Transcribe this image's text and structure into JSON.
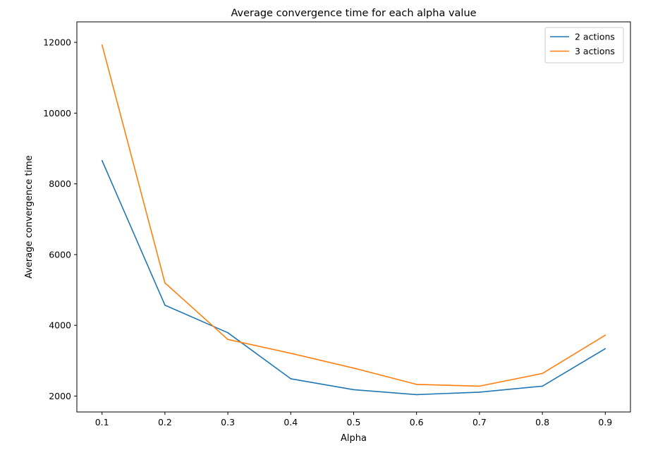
{
  "chart_data": {
    "type": "line",
    "title": "Average convergence time for each alpha value",
    "xlabel": "Alpha",
    "ylabel": "Average convergence time",
    "x": [
      0.1,
      0.2,
      0.3,
      0.4,
      0.5,
      0.6,
      0.7,
      0.8,
      0.9
    ],
    "xticks": [
      "0.1",
      "0.2",
      "0.3",
      "0.4",
      "0.5",
      "0.6",
      "0.7",
      "0.8",
      "0.9"
    ],
    "yticks": [
      2000,
      4000,
      6000,
      8000,
      10000,
      12000
    ],
    "xlim": [
      0.06,
      0.94
    ],
    "ylim": [
      1550,
      12580
    ],
    "grid": false,
    "legend_position": "top-right",
    "series": [
      {
        "name": "2 actions",
        "color": "#1f77b4",
        "values": [
          8660,
          4570,
          3790,
          2490,
          2180,
          2040,
          2110,
          2280,
          3340
        ]
      },
      {
        "name": "3 actions",
        "color": "#ff7f0e",
        "values": [
          11930,
          5200,
          3600,
          3210,
          2790,
          2330,
          2280,
          2640,
          3720
        ]
      }
    ]
  }
}
